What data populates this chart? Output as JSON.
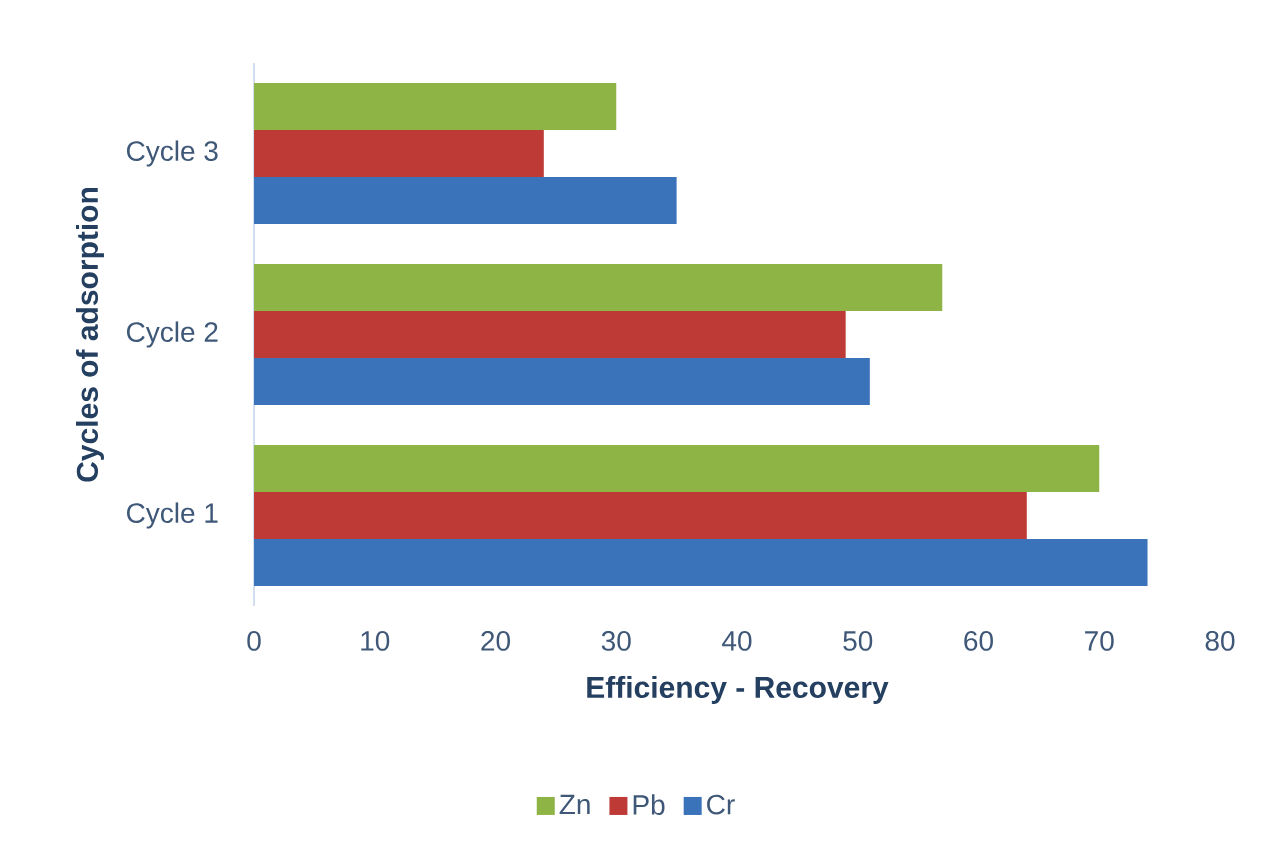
{
  "chart_data": {
    "type": "bar",
    "orientation": "horizontal",
    "xlabel": "Efficiency - Recovery",
    "ylabel": "Cycles of adsorption",
    "categories": [
      "Cycle 3",
      "Cycle 2",
      "Cycle 1"
    ],
    "series": [
      {
        "name": "Zn",
        "color": "#8fb446",
        "values": [
          30,
          57,
          70
        ]
      },
      {
        "name": "Pb",
        "color": "#be3a36",
        "values": [
          24,
          49,
          64
        ]
      },
      {
        "name": "Cr",
        "color": "#3b73ba",
        "values": [
          35,
          51,
          74
        ]
      }
    ],
    "xlim": [
      0,
      80
    ],
    "xticks": [
      0,
      10,
      20,
      30,
      40,
      50,
      60,
      70,
      80
    ],
    "legend": "bottom"
  }
}
